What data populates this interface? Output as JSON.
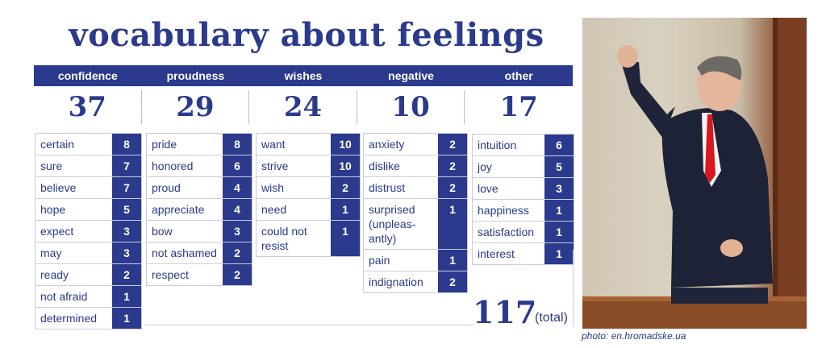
{
  "title": "vocabulary about feelings",
  "categories": [
    {
      "name": "confidence",
      "count": "37"
    },
    {
      "name": "proudness",
      "count": "29"
    },
    {
      "name": "wishes",
      "count": "24"
    },
    {
      "name": "negative",
      "count": "10"
    },
    {
      "name": "other",
      "count": "17"
    }
  ],
  "columns": {
    "confidence": [
      {
        "word": "certain",
        "n": "8"
      },
      {
        "word": "sure",
        "n": "7"
      },
      {
        "word": "believe",
        "n": "7"
      },
      {
        "word": "hope",
        "n": "5"
      },
      {
        "word": "expect",
        "n": "3"
      },
      {
        "word": "may",
        "n": "3"
      },
      {
        "word": "ready",
        "n": "2"
      },
      {
        "word": "not afraid",
        "n": "1"
      },
      {
        "word": "determined",
        "n": "1"
      }
    ],
    "proudness": [
      {
        "word": "pride",
        "n": "8"
      },
      {
        "word": "honored",
        "n": "6"
      },
      {
        "word": "proud",
        "n": "4"
      },
      {
        "word": "appreciate",
        "n": "4"
      },
      {
        "word": "bow",
        "n": "3"
      },
      {
        "word": "not ashamed",
        "n": "2"
      },
      {
        "word": "respect",
        "n": "2"
      }
    ],
    "wishes": [
      {
        "word": "want",
        "n": "10"
      },
      {
        "word": "strive",
        "n": "10"
      },
      {
        "word": "wish",
        "n": "2"
      },
      {
        "word": "need",
        "n": "1"
      },
      {
        "word": "could not resist",
        "n": "1"
      }
    ],
    "negative": [
      {
        "word": "anxiety",
        "n": "2"
      },
      {
        "word": "dislike",
        "n": "2"
      },
      {
        "word": "distrust",
        "n": "2"
      },
      {
        "word": "surprised (unpleas-antly)",
        "n": "1"
      },
      {
        "word": "pain",
        "n": "1"
      },
      {
        "word": "indignation",
        "n": "2"
      }
    ],
    "other": [
      {
        "word": "intuition",
        "n": "6"
      },
      {
        "word": "joy",
        "n": "5"
      },
      {
        "word": "love",
        "n": "3"
      },
      {
        "word": "happiness",
        "n": "1"
      },
      {
        "word": "satisfaction",
        "n": "1"
      },
      {
        "word": "interest",
        "n": "1"
      }
    ]
  },
  "total": {
    "value": "117",
    "label": "(total)"
  },
  "photo_caption": "photo: en.hromadske.ua",
  "colors": {
    "accent": "#2b3a8c"
  }
}
